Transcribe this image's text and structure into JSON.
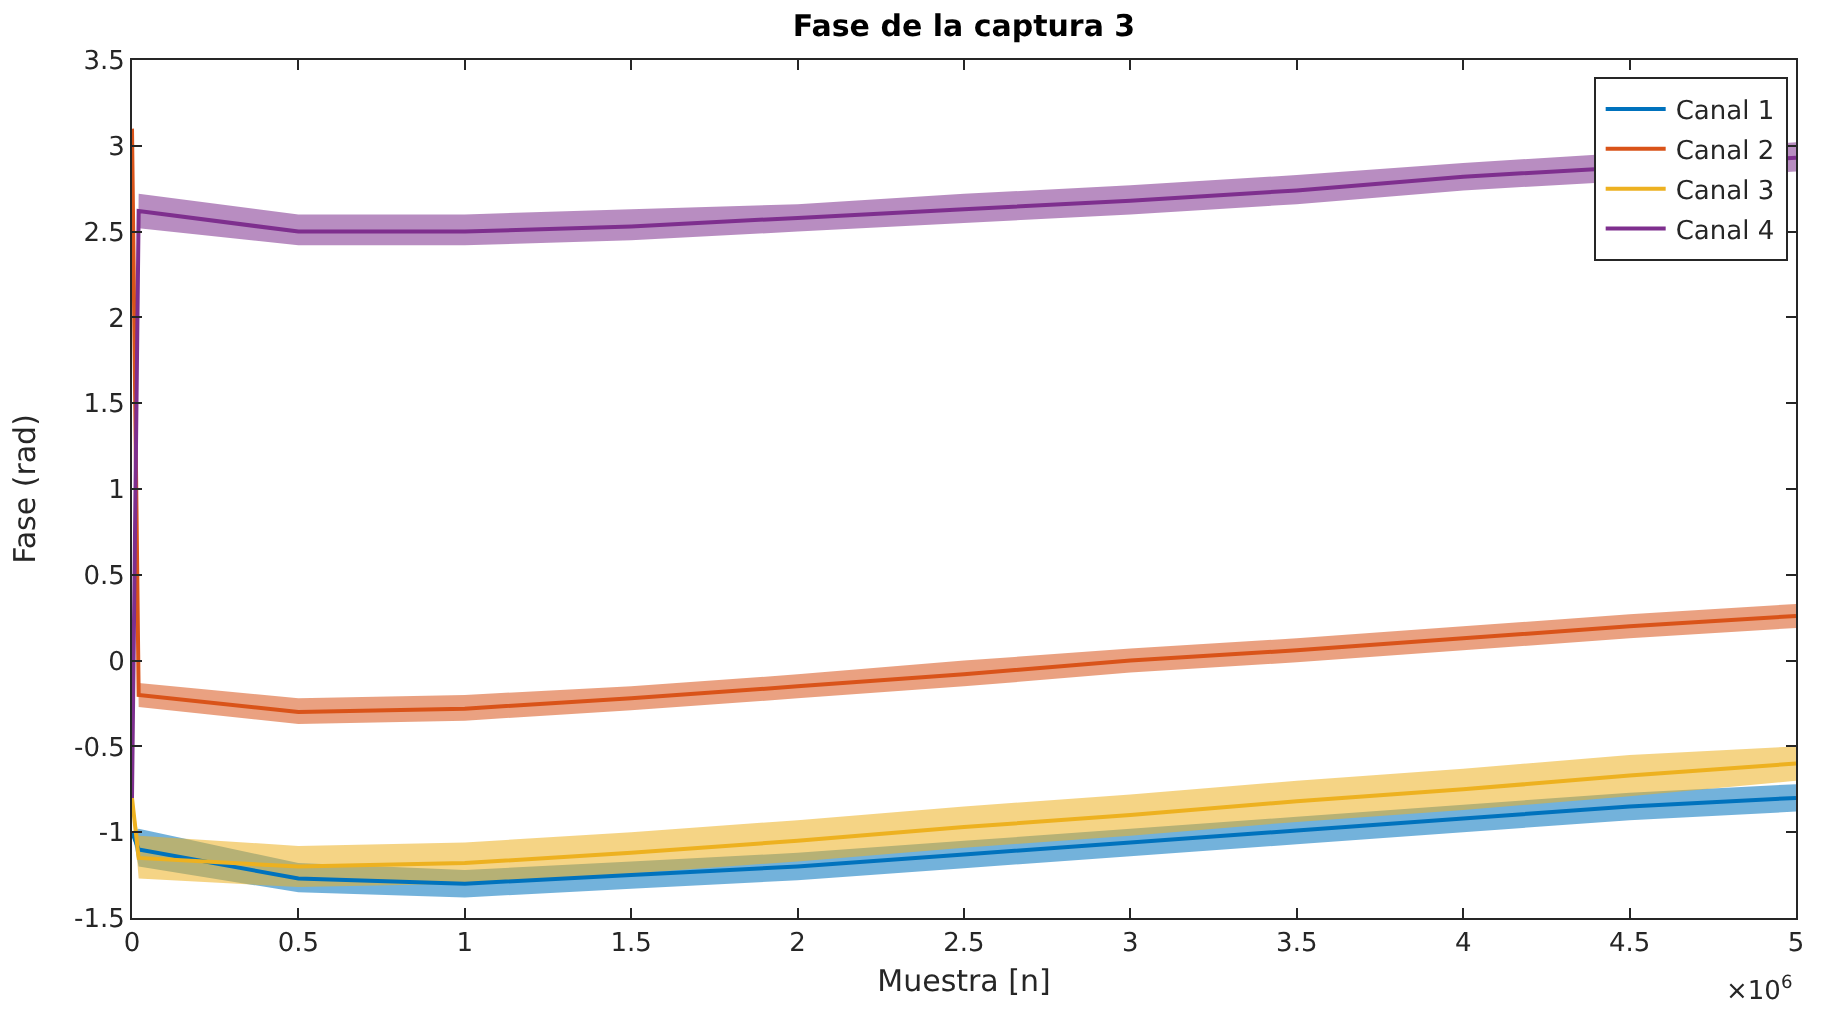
{
  "chart_data": {
    "type": "line",
    "title": "Fase de la captura 3",
    "xlabel": "Muestra [n]",
    "ylabel": "Fase (rad)",
    "x": [
      0,
      0.02,
      0.5,
      1,
      1.5,
      2,
      2.5,
      3,
      3.5,
      4,
      4.5,
      5
    ],
    "xlim": [
      0,
      5
    ],
    "xticks": [
      0,
      0.5,
      1,
      1.5,
      2,
      2.5,
      3,
      3.5,
      4,
      4.5,
      5
    ],
    "ylim": [
      -1.5,
      3.5
    ],
    "yticks": [
      -1.5,
      -1,
      -0.5,
      0,
      0.5,
      1,
      1.5,
      2,
      2.5,
      3,
      3.5
    ],
    "grid": false,
    "legend": "top right",
    "line_style": "solid",
    "marker": "none",
    "annotations": [
      "×10$^{6}$"
    ],
    "series": [
      {
        "name": "Canal 1",
        "color": "#0072bd",
        "values": [
          -1.0,
          -1.1,
          -1.27,
          -1.3,
          -1.25,
          -1.2,
          -1.13,
          -1.06,
          -0.99,
          -0.92,
          -0.85,
          -0.8
        ],
        "lower": [
          -1.0,
          -1.2,
          -1.35,
          -1.38,
          -1.33,
          -1.28,
          -1.21,
          -1.14,
          -1.07,
          -1.0,
          -0.93,
          -0.88
        ],
        "upper": [
          -1.0,
          -0.98,
          -1.18,
          -1.22,
          -1.17,
          -1.12,
          -1.05,
          -0.98,
          -0.91,
          -0.84,
          -0.77,
          -0.72
        ]
      },
      {
        "name": "Canal 2",
        "color": "#d95319",
        "values": [
          3.1,
          -0.2,
          -0.3,
          -0.28,
          -0.22,
          -0.15,
          -0.08,
          0,
          0.06,
          0.13,
          0.2,
          0.26
        ],
        "lower": [
          3.1,
          -0.27,
          -0.37,
          -0.35,
          -0.29,
          -0.22,
          -0.15,
          -0.07,
          -0.01,
          0.06,
          0.13,
          0.19
        ],
        "upper": [
          3.1,
          -0.13,
          -0.22,
          -0.2,
          -0.15,
          -0.08,
          0,
          0.07,
          0.13,
          0.2,
          0.27,
          0.33
        ]
      },
      {
        "name": "Canal 3",
        "color": "#edb120",
        "values": [
          -0.8,
          -1.15,
          -1.2,
          -1.18,
          -1.12,
          -1.05,
          -0.97,
          -0.9,
          -0.82,
          -0.75,
          -0.67,
          -0.6
        ],
        "lower": [
          -0.8,
          -1.27,
          -1.32,
          -1.3,
          -1.24,
          -1.17,
          -1.09,
          -1.02,
          -0.94,
          -0.87,
          -0.79,
          -0.7
        ],
        "upper": [
          -0.8,
          -1.02,
          -1.08,
          -1.06,
          -1.0,
          -0.93,
          -0.85,
          -0.78,
          -0.7,
          -0.63,
          -0.55,
          -0.5
        ]
      },
      {
        "name": "Canal 4",
        "color": "#7e2f8e",
        "values": [
          -0.8,
          2.62,
          2.5,
          2.5,
          2.53,
          2.58,
          2.63,
          2.68,
          2.74,
          2.82,
          null,
          2.93
        ],
        "lower": [
          -0.8,
          2.52,
          2.42,
          2.42,
          2.45,
          2.5,
          2.55,
          2.6,
          2.66,
          2.74,
          null,
          2.85
        ],
        "upper": [
          -0.8,
          2.72,
          2.6,
          2.6,
          2.63,
          2.66,
          2.72,
          2.77,
          2.83,
          2.9,
          null,
          3.02
        ]
      }
    ]
  }
}
